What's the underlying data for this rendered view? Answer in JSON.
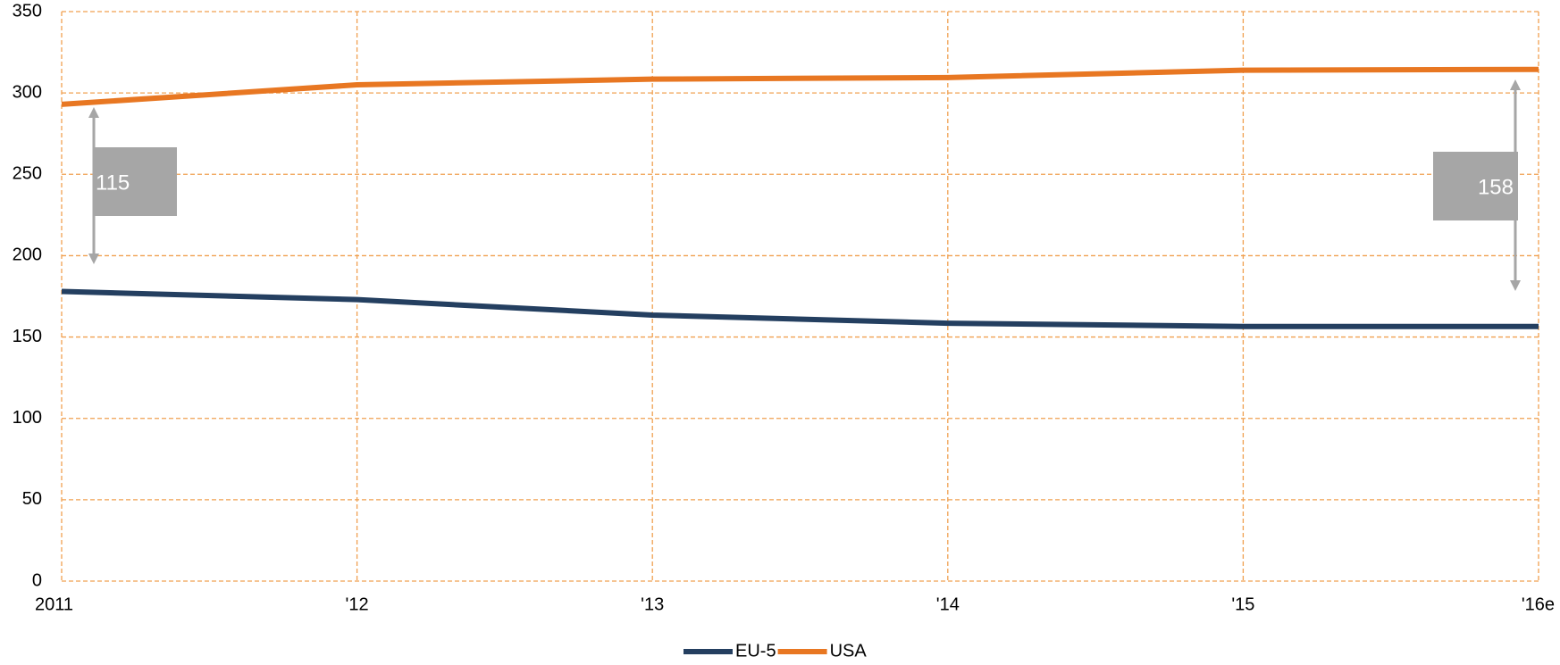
{
  "chart_data": {
    "type": "line",
    "categories": [
      "2011",
      "'12",
      "'13",
      "'14",
      "'15",
      "'16e"
    ],
    "series": [
      {
        "name": "EU-5",
        "color": "#243f60",
        "values": [
          178,
          173,
          163.5,
          158.5,
          156.5,
          156.5
        ]
      },
      {
        "name": "USA",
        "color": "#e87722",
        "values": [
          293,
          305,
          308.5,
          309.5,
          314,
          314.5
        ]
      }
    ],
    "ylim": [
      0,
      350
    ],
    "yticks": [
      0,
      50,
      100,
      150,
      200,
      250,
      300,
      350
    ],
    "grid": true,
    "grid_color": "#f0a050",
    "legend": "bottom",
    "annotations": [
      "115",
      "158"
    ]
  }
}
